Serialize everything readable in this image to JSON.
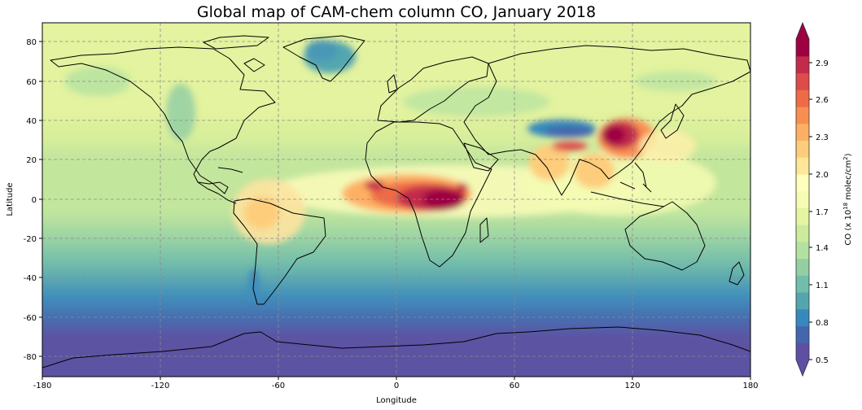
{
  "title": "Global map of CAM-chem column CO, January 2018",
  "chart_data": {
    "type": "heatmap",
    "title": "Global map of CAM-chem column CO, January 2018",
    "xlabel": "Longitude",
    "ylabel": "Latitude",
    "xlim": [
      -180,
      180
    ],
    "ylim": [
      -90,
      90
    ],
    "x_ticks": [
      "-180",
      "-120",
      "-60",
      "0",
      "60",
      "120",
      "180"
    ],
    "y_ticks": [
      "80",
      "60",
      "40",
      "20",
      "0",
      "-20",
      "-40",
      "-60",
      "-80"
    ],
    "grid": true,
    "projection": "PlateCarree",
    "colormap": "Spectral_r",
    "colorbar": {
      "label_prefix": "CO (x 10",
      "label_exp": "18",
      "label_mid": " molec/cm",
      "label_sup": "2",
      "label_suffix": ")",
      "ticks": [
        "0.5",
        "0.8",
        "1.1",
        "1.4",
        "1.7",
        "2.0",
        "2.3",
        "2.6",
        "2.9"
      ],
      "extend": "both",
      "colors": [
        "#5e4fa2",
        "#4466af",
        "#3689bc",
        "#53a6b0",
        "#72beaa",
        "#93cfa3",
        "#b3e1a1",
        "#cdeb9c",
        "#e5f5a0",
        "#f5fbb2",
        "#fefebd",
        "#fee797",
        "#fdcd7c",
        "#fdb064",
        "#f98e52",
        "#ef6b45",
        "#dd4b4b",
        "#c32b4b",
        "#9e0142"
      ]
    },
    "features": [
      {
        "region": "Central Africa",
        "level": "max (>2.9)"
      },
      {
        "region": "Eastern China",
        "level": "max (>2.9)"
      },
      {
        "region": "Tibetan Plateau",
        "level": "low (~0.8)"
      },
      {
        "region": "Greenland",
        "level": "low (~1.1)"
      },
      {
        "region": "Antarctica",
        "level": "min (<0.5)"
      },
      {
        "region": "South America interior",
        "level": "elevated (~2.0)"
      }
    ]
  }
}
